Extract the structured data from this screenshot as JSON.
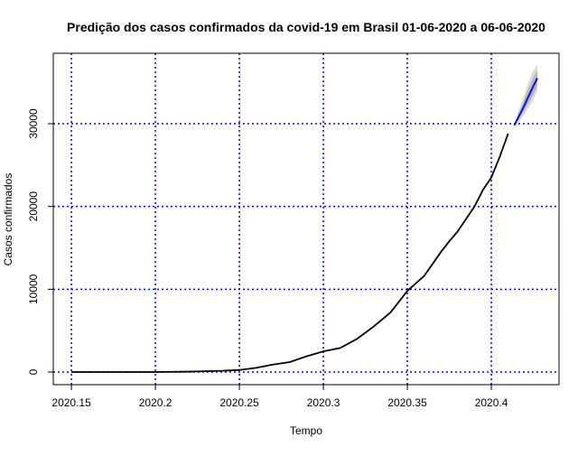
{
  "chart_data": {
    "type": "line",
    "title": "Predição dos casos confirmados da covid-19 em Brasil 01-06-2020 a 06-06-2020",
    "x_label": "Tempo",
    "y_label": "Casos confirmados",
    "xlim": [
      2020.1392,
      2020.4403
    ],
    "ylim": [
      -1527,
      38509
    ],
    "xticks": [
      2020.15,
      2020.2,
      2020.25,
      2020.3,
      2020.35,
      2020.4
    ],
    "yticks": [
      0,
      10000,
      20000,
      30000
    ],
    "grid": true,
    "grid_color": "#0000ff",
    "series": [
      {
        "color": "#000000",
        "x": [
          2020.15,
          2020.2,
          2020.22,
          2020.24,
          2020.25,
          2020.26,
          2020.27,
          2020.28,
          2020.29,
          2020.3,
          2020.31,
          2020.32,
          2020.33,
          2020.34,
          2020.35,
          2020.36,
          2020.37,
          2020.375,
          2020.38,
          2020.39,
          2020.395,
          2020.4,
          2020.405,
          2020.41
        ],
        "values": [
          0,
          0,
          50,
          150,
          250,
          500,
          900,
          1200,
          1900,
          2500,
          2900,
          4000,
          5500,
          7200,
          9800,
          11600,
          14500,
          15800,
          17000,
          20000,
          22000,
          23500,
          26000,
          28800
        ]
      },
      {
        "color": "#0000ff",
        "x": [
          2020.4137,
          2020.4164,
          2020.4192,
          2020.4219,
          2020.4247,
          2020.4274
        ],
        "values": [
          29800,
          30900,
          32000,
          33200,
          34400,
          35500
        ],
        "bands": [
          {
            "color": "#dbdbdb",
            "lower": [
              29700,
              30200,
              31000,
              31800,
              32800,
              33900
            ],
            "upper": [
              29900,
              31700,
              33300,
              34900,
              36300,
              37200
            ]
          },
          {
            "color": "#b5b5b5",
            "lower": [
              29750,
              30500,
              31400,
              32400,
              33400,
              34500
            ],
            "upper": [
              29850,
              31300,
              32700,
              34100,
              35400,
              36500
            ]
          }
        ]
      }
    ]
  }
}
